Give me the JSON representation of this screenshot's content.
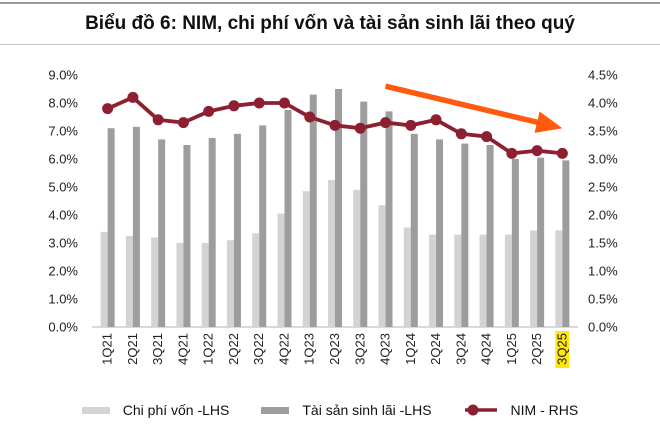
{
  "header": {
    "title": "Biểu đồ 6: NIM, chi phí vốn và tài sản sinh lãi theo quý"
  },
  "chart_data": {
    "type": "combo-bar-line",
    "title": "Biểu đồ 6: NIM, chi phí vốn và tài sản sinh lãi theo quý",
    "categories": [
      "1Q21",
      "2Q21",
      "3Q21",
      "4Q21",
      "1Q22",
      "2Q22",
      "3Q22",
      "4Q22",
      "1Q23",
      "2Q23",
      "3Q23",
      "4Q23",
      "1Q24",
      "2Q24",
      "3Q24",
      "4Q24",
      "1Q25",
      "2Q25",
      "3Q25"
    ],
    "bar_series": [
      {
        "name": "Chi phí vốn -LHS",
        "axis": "left",
        "color": "#d3d3d3",
        "values": [
          3.4,
          3.25,
          3.2,
          3.0,
          3.0,
          3.1,
          3.35,
          4.05,
          4.85,
          5.25,
          4.9,
          4.35,
          3.55,
          3.3,
          3.3,
          3.3,
          3.3,
          3.45,
          3.45
        ]
      },
      {
        "name": "Tài sản sinh lãi -LHS",
        "axis": "left",
        "color": "#9d9d9d",
        "values": [
          7.1,
          7.15,
          6.7,
          6.5,
          6.75,
          6.9,
          7.2,
          7.75,
          8.3,
          8.5,
          8.05,
          7.7,
          6.9,
          6.7,
          6.55,
          6.5,
          6.0,
          6.05,
          5.95
        ]
      }
    ],
    "line_series": [
      {
        "name": "NIM - RHS",
        "axis": "right",
        "color": "#8c2030",
        "values": [
          3.9,
          4.1,
          3.7,
          3.65,
          3.85,
          3.95,
          4.0,
          4.0,
          3.75,
          3.6,
          3.55,
          3.65,
          3.6,
          3.7,
          3.45,
          3.4,
          3.1,
          3.15,
          3.1
        ]
      }
    ],
    "left_axis": {
      "min": 0,
      "max": 9,
      "step": 1,
      "decimals": 1,
      "suffix": "%"
    },
    "right_axis": {
      "min": 0,
      "max": 4.5,
      "step": 0.5,
      "decimals": 1,
      "suffix": "%"
    },
    "x_axis": {
      "rotation": -90,
      "highlighted_category": "3Q25",
      "highlight_color": "#ffe512"
    },
    "annotation_arrow": {
      "color": "#ff5a0d",
      "from_category": "4Q23",
      "from_value_rhs": 4.3,
      "to_category": "3Q25",
      "to_value_rhs": 3.55
    },
    "grid": false,
    "legend_position": "bottom",
    "text_color": "#222222",
    "baseline_color": "#d9d9d9"
  },
  "legend": {
    "items": [
      {
        "label": "Chi phí vốn -LHS",
        "swatch": "bar-light"
      },
      {
        "label": "Tài sản sinh lãi -LHS",
        "swatch": "bar-dark"
      },
      {
        "label": "NIM - RHS",
        "swatch": "line-dot"
      }
    ]
  }
}
